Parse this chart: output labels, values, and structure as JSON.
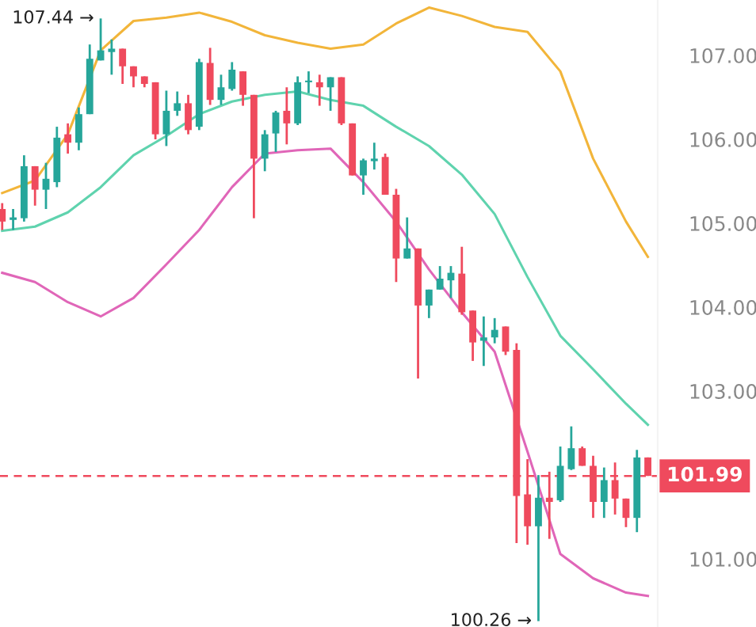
{
  "chart_data": {
    "type": "candlestick",
    "categories": [
      null,
      null,
      null,
      null,
      null,
      null,
      null,
      null,
      null,
      null,
      null,
      null,
      null,
      null,
      null,
      null,
      null,
      null,
      null,
      null,
      null,
      null,
      null,
      null,
      null,
      null,
      null,
      null,
      null,
      null,
      null,
      null,
      null,
      null,
      null,
      null,
      null,
      null,
      null,
      null,
      null,
      null,
      null,
      null,
      null,
      null,
      null,
      null,
      null,
      null,
      null,
      null,
      null,
      null,
      null,
      null,
      null,
      null,
      null,
      null
    ],
    "ohlc": [
      [
        105.17,
        105.24,
        104.92,
        105.02
      ],
      [
        105.04,
        105.17,
        104.92,
        105.07
      ],
      [
        105.06,
        105.81,
        105.02,
        105.68
      ],
      [
        105.68,
        105.68,
        105.21,
        105.4
      ],
      [
        105.4,
        105.72,
        105.17,
        105.53
      ],
      [
        105.49,
        106.15,
        105.43,
        106.02
      ],
      [
        106.06,
        106.19,
        105.83,
        105.96
      ],
      [
        105.96,
        106.38,
        105.87,
        106.3
      ],
      [
        106.3,
        107.13,
        106.3,
        106.96
      ],
      [
        106.94,
        107.44,
        106.94,
        107.06
      ],
      [
        107.04,
        107.19,
        106.77,
        107.08
      ],
      [
        107.08,
        107.08,
        106.66,
        106.87
      ],
      [
        106.87,
        106.87,
        106.62,
        106.75
      ],
      [
        106.75,
        106.75,
        106.62,
        106.66
      ],
      [
        106.68,
        106.68,
        106.0,
        106.06
      ],
      [
        106.06,
        106.58,
        105.92,
        106.34
      ],
      [
        106.34,
        106.57,
        106.28,
        106.43
      ],
      [
        106.43,
        106.53,
        106.06,
        106.11
      ],
      [
        106.15,
        106.96,
        106.11,
        106.92
      ],
      [
        106.91,
        107.09,
        106.41,
        106.47
      ],
      [
        106.47,
        106.77,
        106.41,
        106.62
      ],
      [
        106.6,
        106.92,
        106.58,
        106.83
      ],
      [
        106.81,
        106.81,
        106.4,
        106.53
      ],
      [
        106.53,
        106.53,
        105.06,
        105.77
      ],
      [
        105.77,
        106.11,
        105.62,
        106.06
      ],
      [
        106.07,
        106.34,
        105.85,
        106.32
      ],
      [
        106.34,
        106.62,
        105.94,
        106.19
      ],
      [
        106.19,
        106.75,
        106.17,
        106.68
      ],
      [
        106.68,
        106.81,
        106.55,
        106.7
      ],
      [
        106.68,
        106.77,
        106.4,
        106.62
      ],
      [
        106.62,
        106.74,
        106.34,
        106.74
      ],
      [
        106.74,
        106.74,
        106.17,
        106.19
      ],
      [
        106.19,
        106.19,
        105.57,
        105.57
      ],
      [
        105.57,
        105.77,
        105.34,
        105.75
      ],
      [
        105.74,
        105.96,
        105.64,
        105.77
      ],
      [
        105.79,
        105.83,
        105.34,
        105.34
      ],
      [
        105.34,
        105.41,
        104.3,
        104.58
      ],
      [
        104.58,
        105.07,
        104.58,
        104.7
      ],
      [
        104.7,
        104.7,
        103.15,
        104.02
      ],
      [
        104.02,
        104.21,
        103.87,
        104.21
      ],
      [
        104.21,
        104.49,
        104.21,
        104.34
      ],
      [
        104.32,
        104.49,
        104.11,
        104.41
      ],
      [
        104.4,
        104.72,
        103.91,
        103.94
      ],
      [
        103.96,
        103.96,
        103.36,
        103.58
      ],
      [
        103.6,
        103.89,
        103.3,
        103.64
      ],
      [
        103.64,
        103.87,
        103.57,
        103.73
      ],
      [
        103.77,
        103.77,
        103.43,
        103.47
      ],
      [
        103.49,
        103.57,
        101.19,
        101.75
      ],
      [
        101.77,
        102.19,
        101.17,
        101.39
      ],
      [
        101.39,
        102.0,
        100.26,
        101.73
      ],
      [
        101.73,
        102.04,
        101.24,
        101.68
      ],
      [
        101.7,
        102.34,
        101.68,
        102.11
      ],
      [
        102.07,
        102.58,
        102.06,
        102.32
      ],
      [
        102.32,
        102.34,
        102.11,
        102.11
      ],
      [
        102.11,
        102.23,
        101.49,
        101.68
      ],
      [
        101.68,
        102.09,
        101.49,
        101.94
      ],
      [
        101.94,
        102.15,
        101.53,
        101.72
      ],
      [
        101.72,
        101.72,
        101.38,
        101.49
      ],
      [
        101.49,
        102.3,
        101.32,
        102.21
      ],
      [
        102.21,
        102.21,
        101.99,
        101.99
      ]
    ],
    "colors": [
      "#ef4a5d",
      "#26a69a",
      "#26a69a",
      "#ef4a5d",
      "#26a69a",
      "#26a69a",
      "#ef4a5d",
      "#26a69a",
      "#26a69a",
      "#26a69a",
      "#26a69a",
      "#ef4a5d",
      "#ef4a5d",
      "#ef4a5d",
      "#ef4a5d",
      "#26a69a",
      "#26a69a",
      "#ef4a5d",
      "#26a69a",
      "#ef4a5d",
      "#26a69a",
      "#26a69a",
      "#ef4a5d",
      "#ef4a5d",
      "#26a69a",
      "#26a69a",
      "#ef4a5d",
      "#26a69a",
      "#26a69a",
      "#ef4a5d",
      "#26a69a",
      "#ef4a5d",
      "#ef4a5d",
      "#26a69a",
      "#26a69a",
      "#ef4a5d",
      "#ef4a5d",
      "#26a69a",
      "#ef4a5d",
      "#26a69a",
      "#26a69a",
      "#26a69a",
      "#ef4a5d",
      "#ef4a5d",
      "#26a69a",
      "#26a69a",
      "#ef4a5d",
      "#ef4a5d",
      "#ef4a5d",
      "#26a69a",
      "#ef4a5d",
      "#26a69a",
      "#26a69a",
      "#ef4a5d",
      "#ef4a5d",
      "#26a69a",
      "#ef4a5d",
      "#ef4a5d",
      "#26a69a",
      "#ef4a5d"
    ],
    "series": [
      {
        "type": "line",
        "color": "#f2b53a",
        "values": [
          105.36,
          null,
          null,
          105.51,
          null,
          null,
          106.06,
          null,
          null,
          107.06,
          null,
          null,
          107.41,
          null,
          null,
          107.45,
          null,
          null,
          107.51,
          null,
          null,
          107.4,
          null,
          null,
          107.24,
          null,
          null,
          107.15,
          null,
          null,
          107.08,
          null,
          null,
          107.13,
          null,
          null,
          107.38,
          null,
          null,
          107.57,
          null,
          null,
          107.47,
          null,
          null,
          107.34,
          null,
          null,
          107.28,
          null,
          null,
          106.81,
          null,
          null,
          105.77,
          null,
          null,
          105.02,
          null,
          104.6
        ]
      },
      {
        "type": "line",
        "color": "#5fd3ae",
        "values": [
          104.91,
          null,
          null,
          104.96,
          null,
          null,
          105.13,
          null,
          null,
          105.43,
          null,
          null,
          105.81,
          null,
          null,
          106.04,
          null,
          null,
          106.3,
          null,
          null,
          106.45,
          null,
          null,
          106.53,
          null,
          null,
          106.57,
          null,
          null,
          106.47,
          null,
          null,
          106.4,
          null,
          null,
          106.15,
          null,
          null,
          105.92,
          null,
          null,
          105.58,
          null,
          null,
          105.11,
          null,
          null,
          104.36,
          null,
          null,
          103.66,
          null,
          null,
          103.26,
          null,
          null,
          102.85,
          null,
          102.6
        ]
      },
      {
        "type": "line",
        "color": "#e066b8",
        "values": [
          104.41,
          null,
          null,
          104.3,
          null,
          null,
          104.06,
          null,
          null,
          103.89,
          null,
          null,
          104.11,
          null,
          null,
          104.51,
          null,
          null,
          104.92,
          null,
          null,
          105.43,
          null,
          null,
          105.83,
          null,
          null,
          105.87,
          null,
          null,
          105.89,
          null,
          null,
          105.49,
          null,
          null,
          105.02,
          null,
          null,
          104.45,
          null,
          null,
          103.94,
          null,
          null,
          103.47,
          null,
          null,
          102.28,
          null,
          null,
          101.06,
          null,
          null,
          100.77,
          null,
          null,
          100.6,
          null,
          100.56
        ]
      }
    ],
    "ylim": [
      100.19,
      107.66
    ],
    "yticks": [
      {
        "value": 101,
        "label": "101.00"
      },
      {
        "value": 102,
        "label": null
      },
      {
        "value": 103,
        "label": "103.00"
      },
      {
        "value": 104,
        "label": "104.00"
      },
      {
        "value": 105,
        "label": "105.00"
      },
      {
        "value": 106,
        "label": "106.00"
      },
      {
        "value": 107,
        "label": "107.00"
      }
    ],
    "ref_lines": [
      {
        "axis": "y",
        "value": 101.99,
        "label": "101.99",
        "color": "#ef4a5d",
        "line_style": "dashed"
      }
    ],
    "annotations": [
      "107.44 →",
      "100.26 →"
    ],
    "tick_labels": "y",
    "grid": false
  }
}
